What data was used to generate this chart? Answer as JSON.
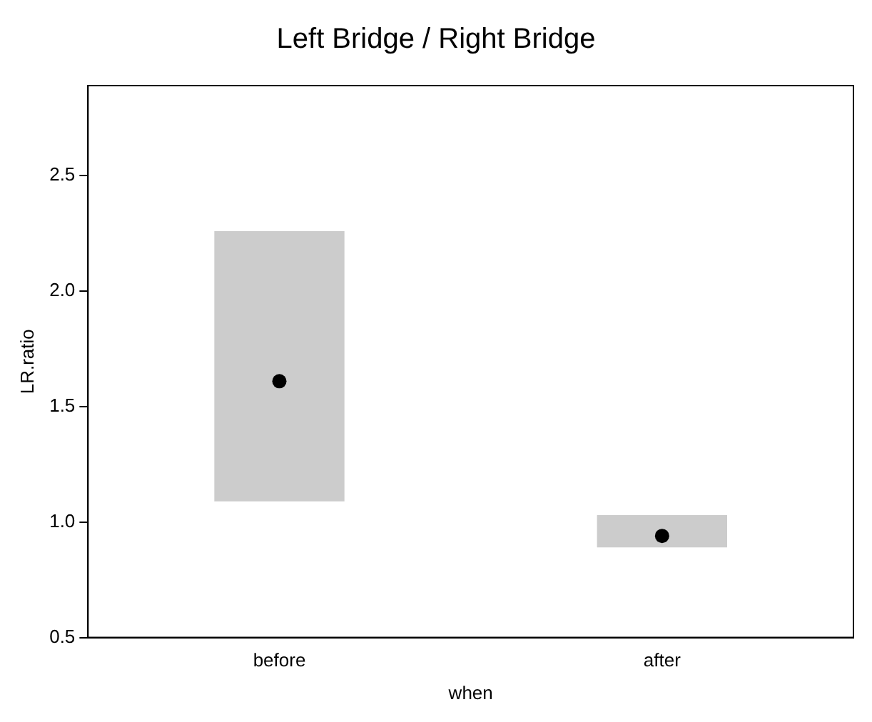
{
  "chart_data": {
    "type": "bar",
    "title": "Left Bridge / Right Bridge",
    "xlabel": "when",
    "ylabel": "LR.ratio",
    "categories": [
      "before",
      "after"
    ],
    "series": [
      {
        "type": "bar",
        "color": "#cccccc",
        "base": [
          1.09,
          0.89
        ],
        "values": [
          1.17,
          0.14
        ]
      },
      {
        "type": "scatter",
        "color": "#000000",
        "x": [
          "before",
          "after"
        ],
        "values": [
          1.61,
          0.94
        ]
      }
    ],
    "marker": "circle",
    "ylim": [
      0.5,
      2.89
    ],
    "yticks": [
      0.5,
      {
        "value": 1.0,
        "label": "1.0"
      },
      1.5,
      {
        "value": 2.0,
        "label": "2.0"
      },
      2.5
    ],
    "grid": false,
    "legend": false
  }
}
